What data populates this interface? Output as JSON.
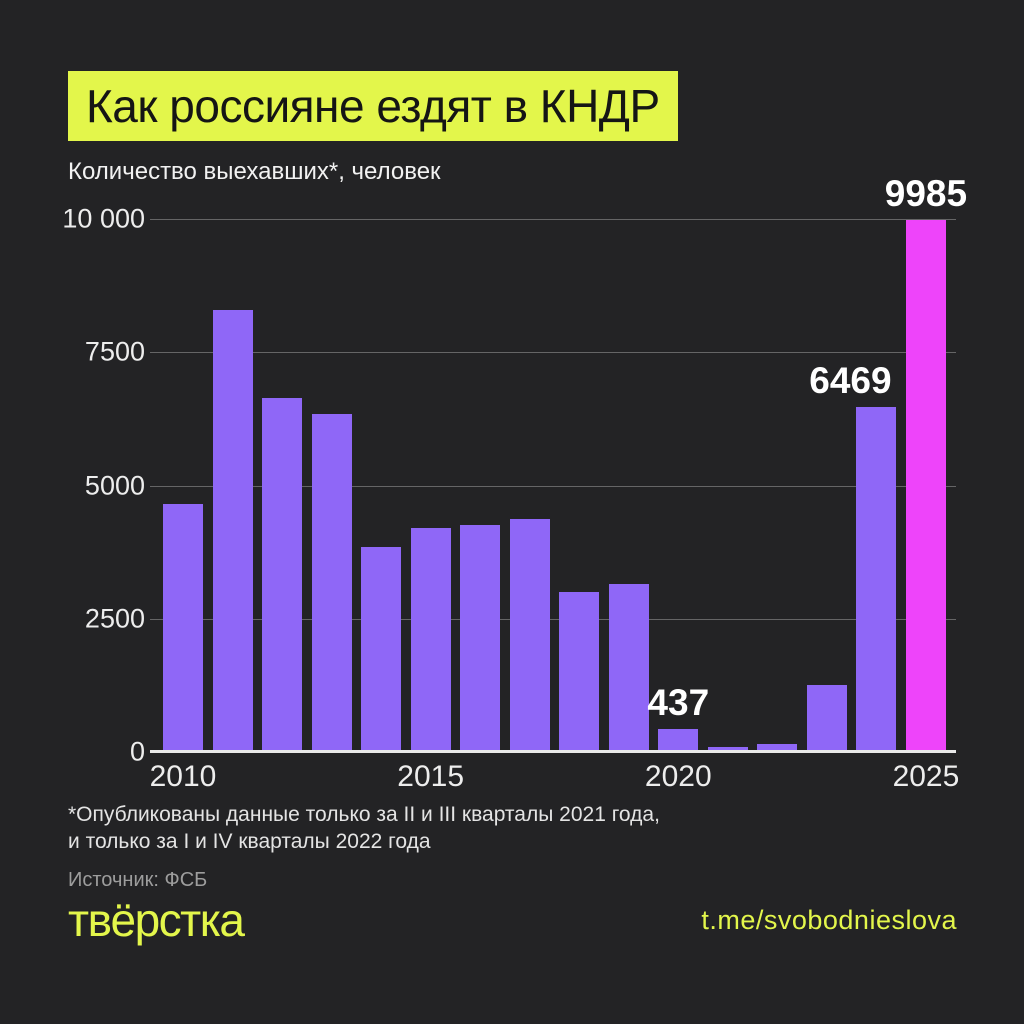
{
  "title": "Как россияне ездят в КНДР",
  "subtitle": "Количество выехавших*, человек",
  "footnote": {
    "line1": "*Опубликованы данные только за II и III кварталы 2021 года,",
    "line2": "и только за I и IV кварталы 2022 года"
  },
  "source": "Источник: ФСБ",
  "logo_text": "твёрстка",
  "telegram_link": "t.me/svobodnieslova",
  "colors": {
    "background": "#232325",
    "accent_yellow": "#e3f64b",
    "bar_purple": "#8f67f7",
    "bar_highlight_magenta": "#ee44fa",
    "grid": "rgba(255,255,255,0.30)",
    "axis": "#e9e9e9",
    "text_white": "#f2f2f2",
    "text_gray": "#9d9d9d",
    "title_text": "#151515"
  },
  "chart_data": {
    "type": "bar",
    "categories": [
      "2010",
      "2011",
      "2012",
      "2013",
      "2014",
      "2015",
      "2016",
      "2017",
      "2018",
      "2019",
      "2020",
      "2021",
      "2022",
      "2023",
      "2024",
      "2025"
    ],
    "values": [
      4650,
      8300,
      6650,
      6350,
      3850,
      4200,
      4250,
      4380,
      3000,
      3150,
      437,
      100,
      150,
      1250,
      6469,
      9985
    ],
    "title": "Как россияне ездят в КНДР",
    "subtitle": "Количество выехавших*, человек",
    "xlabel": "",
    "ylabel": "Количество выехавших, человек",
    "ylim": [
      0,
      10000
    ],
    "yticks": [
      0,
      2500,
      5000,
      7500,
      10000
    ],
    "ytick_labels": [
      "0",
      "2500",
      "5000",
      "7500",
      "10 000"
    ],
    "xticks": [
      {
        "index": 0,
        "label": "2010"
      },
      {
        "index": 5,
        "label": "2015"
      },
      {
        "index": 10,
        "label": "2020"
      },
      {
        "index": 15,
        "label": "2025"
      }
    ],
    "annotations": [
      {
        "index": 10,
        "text": "437",
        "dx": 0
      },
      {
        "index": 14,
        "text": "6469",
        "dx": -26
      },
      {
        "index": 15,
        "text": "9985",
        "dx": 0
      }
    ],
    "highlight_index": 15,
    "grid": true,
    "legend": false
  }
}
